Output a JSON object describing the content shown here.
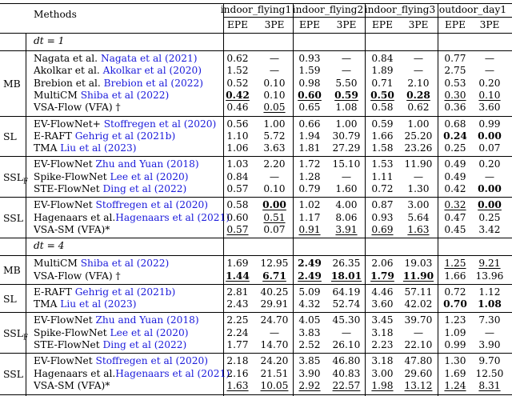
{
  "header": {
    "methods": "Methods",
    "datasets": [
      "indoor_flying1",
      "indoor_flying2",
      "indoor_flying3",
      "outdoor_day1"
    ],
    "metrics": [
      "EPE",
      "3PE",
      "EPE",
      "3PE",
      "EPE",
      "3PE",
      "EPE",
      "3PE"
    ]
  },
  "sections": [
    {
      "label": "dt = 1",
      "groups": [
        {
          "category": "MB",
          "rows": [
            {
              "name": "Nagata et al. ",
              "cite": "Nagata et al (2021)",
              "values": [
                "0.62",
                "—",
                "0.93",
                "—",
                "0.84",
                "—",
                "0.77",
                "—"
              ],
              "styles": [
                "",
                "",
                "",
                "",
                "",
                "",
                "",
                ""
              ]
            },
            {
              "name": "Akolkar et al. ",
              "cite": "Akolkar et al (2020)",
              "values": [
                "1.52",
                "—",
                "1.59",
                "—",
                "1.89",
                "—",
                "2.75",
                "—"
              ],
              "styles": [
                "",
                "",
                "",
                "",
                "",
                "",
                "",
                ""
              ]
            },
            {
              "name": "Brebion et al. ",
              "cite": "Brebion et al (2022)",
              "values": [
                "0.52",
                "0.10",
                "0.98",
                "5.50",
                "0.71",
                "2.10",
                "0.53",
                "0.20"
              ],
              "styles": [
                "",
                "",
                "",
                "",
                "",
                "",
                "",
                ""
              ]
            },
            {
              "name": "MultiCM ",
              "cite": "Shiba et al (2022)",
              "values": [
                "0.42",
                "0.10",
                "0.60",
                "0.59",
                "0.50",
                "0.28",
                "0.30",
                "0.10"
              ],
              "styles": [
                "ub",
                "",
                "ub",
                "ub",
                "ub",
                "ub",
                "u",
                "u"
              ]
            },
            {
              "name": "VSA-Flow (VFA) †",
              "cite": "",
              "values": [
                "0.46",
                "0.05",
                "0.65",
                "1.08",
                "0.58",
                "0.62",
                "0.36",
                "3.60"
              ],
              "styles": [
                "",
                "u",
                "",
                "",
                "",
                "",
                "",
                ""
              ]
            }
          ]
        },
        {
          "category": "SL",
          "rows": [
            {
              "name": "EV-FlowNet+ ",
              "cite": "Stoffregen et al (2020)",
              "values": [
                "0.56",
                "1.00",
                "0.66",
                "1.00",
                "0.59",
                "1.00",
                "0.68",
                "0.99"
              ],
              "styles": [
                "",
                "",
                "",
                "",
                "",
                "",
                "",
                ""
              ]
            },
            {
              "name": "E-RAFT ",
              "cite": "Gehrig et al (2021b)",
              "values": [
                "1.10",
                "5.72",
                "1.94",
                "30.79",
                "1.66",
                "25.20",
                "0.24",
                "0.00"
              ],
              "styles": [
                "",
                "",
                "",
                "",
                "",
                "",
                "b",
                "b"
              ]
            },
            {
              "name": "TMA ",
              "cite": "Liu et al (2023)",
              "values": [
                "1.06",
                "3.63",
                "1.81",
                "27.29",
                "1.58",
                "23.26",
                "0.25",
                "0.07"
              ],
              "styles": [
                "",
                "",
                "",
                "",
                "",
                "",
                "",
                ""
              ]
            }
          ]
        },
        {
          "category": "SSL",
          "category_sub": "F",
          "rows": [
            {
              "name": "EV-FlowNet ",
              "cite": "Zhu and Yuan (2018)",
              "values": [
                "1.03",
                "2.20",
                "1.72",
                "15.10",
                "1.53",
                "11.90",
                "0.49",
                "0.20"
              ],
              "styles": [
                "",
                "",
                "",
                "",
                "",
                "",
                "",
                ""
              ]
            },
            {
              "name": "Spike-FlowNet ",
              "cite": "Lee et al (2020)",
              "values": [
                "0.84",
                "—",
                "1.28",
                "—",
                "1.11",
                "—",
                "0.49",
                "—"
              ],
              "styles": [
                "",
                "",
                "",
                "",
                "",
                "",
                "",
                ""
              ]
            },
            {
              "name": "STE-FlowNet ",
              "cite": "Ding et al (2022)",
              "values": [
                "0.57",
                "0.10",
                "0.79",
                "1.60",
                "0.72",
                "1.30",
                "0.42",
                "0.00"
              ],
              "styles": [
                "",
                "",
                "",
                "",
                "",
                "",
                "",
                "b"
              ]
            }
          ]
        },
        {
          "category": "SSL",
          "rows": [
            {
              "name": "EV-FlowNet ",
              "cite": "Stoffregen et al (2020)",
              "values": [
                "0.58",
                "0.00",
                "1.02",
                "4.00",
                "0.87",
                "3.00",
                "0.32",
                "0.00"
              ],
              "styles": [
                "",
                "ub",
                "",
                "",
                "",
                "",
                "u",
                "ub"
              ]
            },
            {
              "name": "Hagenaars et al.",
              "cite": "Hagenaars et al (2021)",
              "values": [
                "0.60",
                "0.51",
                "1.17",
                "8.06",
                "0.93",
                "5.64",
                "0.47",
                "0.25"
              ],
              "styles": [
                "",
                "u",
                "",
                "",
                "",
                "",
                "",
                ""
              ]
            },
            {
              "name": "VSA-SM (VFA)*",
              "cite": "",
              "values": [
                "0.57",
                "0.07",
                "0.91",
                "3.91",
                "0.69",
                "1.63",
                "0.45",
                "3.42"
              ],
              "styles": [
                "u",
                "",
                "u",
                "u",
                "u",
                "u",
                "",
                ""
              ]
            }
          ]
        }
      ]
    },
    {
      "label": "dt = 4",
      "groups": [
        {
          "category": "MB",
          "rows": [
            {
              "name": "MultiCM ",
              "cite": "Shiba et al (2022)",
              "values": [
                "1.69",
                "12.95",
                "2.49",
                "26.35",
                "2.06",
                "19.03",
                "1.25",
                "9.21"
              ],
              "styles": [
                "",
                "",
                "b",
                "",
                "",
                "",
                "u",
                "u"
              ]
            },
            {
              "name": "VSA-Flow (VFA) †",
              "cite": "",
              "values": [
                "1.44",
                "6.71",
                "2.49",
                "18.01",
                "1.79",
                "11.90",
                "1.66",
                "13.96"
              ],
              "styles": [
                "ub",
                "ub",
                "ub",
                "ub",
                "ub",
                "ub",
                "",
                ""
              ]
            }
          ]
        },
        {
          "category": "SL",
          "rows": [
            {
              "name": "E-RAFT ",
              "cite": "Gehrig et al (2021b)",
              "values": [
                "2.81",
                "40.25",
                "5.09",
                "64.19",
                "4.46",
                "57.11",
                "0.72",
                "1.12"
              ],
              "styles": [
                "",
                "",
                "",
                "",
                "",
                "",
                "",
                ""
              ]
            },
            {
              "name": "TMA ",
              "cite": "Liu et al (2023)",
              "values": [
                "2.43",
                "29.91",
                "4.32",
                "52.74",
                "3.60",
                "42.02",
                "0.70",
                "1.08"
              ],
              "styles": [
                "",
                "",
                "",
                "",
                "",
                "",
                "b",
                "b"
              ]
            }
          ]
        },
        {
          "category": "SSL",
          "category_sub": "F",
          "rows": [
            {
              "name": "EV-FlowNet ",
              "cite": "Zhu and Yuan (2018)",
              "values": [
                "2.25",
                "24.70",
                "4.05",
                "45.30",
                "3.45",
                "39.70",
                "1.23",
                "7.30"
              ],
              "styles": [
                "",
                "",
                "",
                "",
                "",
                "",
                "",
                ""
              ]
            },
            {
              "name": "Spike-FlowNet ",
              "cite": "Lee et al (2020)",
              "values": [
                "2.24",
                "—",
                "3.83",
                "—",
                "3.18",
                "—",
                "1.09",
                "—"
              ],
              "styles": [
                "",
                "",
                "",
                "",
                "",
                "",
                "",
                ""
              ]
            },
            {
              "name": "STE-FlowNet ",
              "cite": "Ding et al (2022)",
              "values": [
                "1.77",
                "14.70",
                "2.52",
                "26.10",
                "2.23",
                "22.10",
                "0.99",
                "3.90"
              ],
              "styles": [
                "",
                "",
                "",
                "",
                "",
                "",
                "",
                ""
              ]
            }
          ]
        },
        {
          "category": "SSL",
          "rows": [
            {
              "name": "EV-FlowNet ",
              "cite": "Stoffregen et al (2020)",
              "values": [
                "2.18",
                "24.20",
                "3.85",
                "46.80",
                "3.18",
                "47.80",
                "1.30",
                "9.70"
              ],
              "styles": [
                "",
                "",
                "",
                "",
                "",
                "",
                "",
                ""
              ]
            },
            {
              "name": "Hagenaars et al.",
              "cite": "Hagenaars et al (2021)",
              "values": [
                "2.16",
                "21.51",
                "3.90",
                "40.83",
                "3.00",
                "29.60",
                "1.69",
                "12.50"
              ],
              "styles": [
                "",
                "",
                "",
                "",
                "",
                "",
                "",
                ""
              ]
            },
            {
              "name": "VSA-SM (VFA)*",
              "cite": "",
              "values": [
                "1.63",
                "10.05",
                "2.92",
                "22.57",
                "1.98",
                "13.12",
                "1.24",
                "8.31"
              ],
              "styles": [
                "u",
                "u",
                "u",
                "u",
                "u",
                "u",
                "u",
                "u"
              ]
            }
          ]
        }
      ]
    }
  ]
}
